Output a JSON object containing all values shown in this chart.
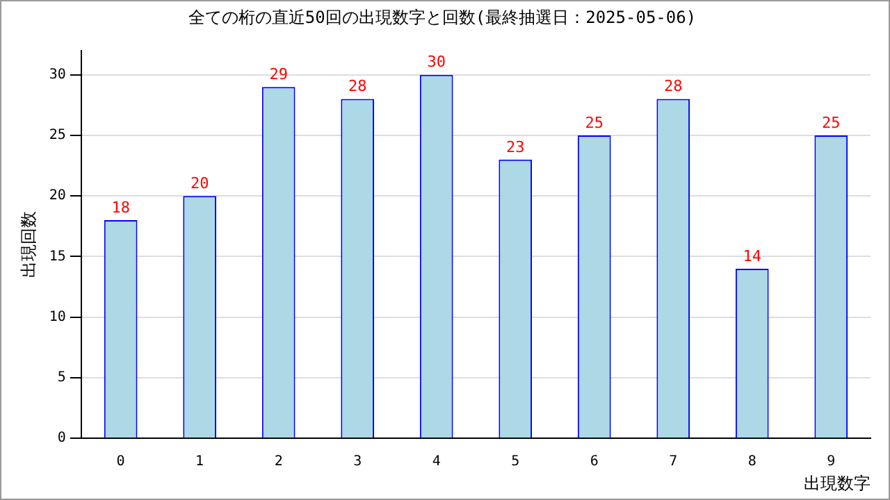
{
  "chart_data": {
    "type": "bar",
    "title": "全ての桁の直近50回の出現数字と回数(最終抽選日：2025-05-06)",
    "xlabel": "出現数字",
    "ylabel": "出現回数",
    "categories": [
      "0",
      "1",
      "2",
      "3",
      "4",
      "5",
      "6",
      "7",
      "8",
      "9"
    ],
    "values": [
      18,
      20,
      29,
      28,
      30,
      23,
      25,
      28,
      14,
      25
    ],
    "color": "#add8e6",
    "ylim": [
      0,
      32
    ],
    "yticks": [
      0,
      5,
      10,
      15,
      20,
      25,
      30
    ],
    "grid": "y",
    "data_labels": true
  }
}
